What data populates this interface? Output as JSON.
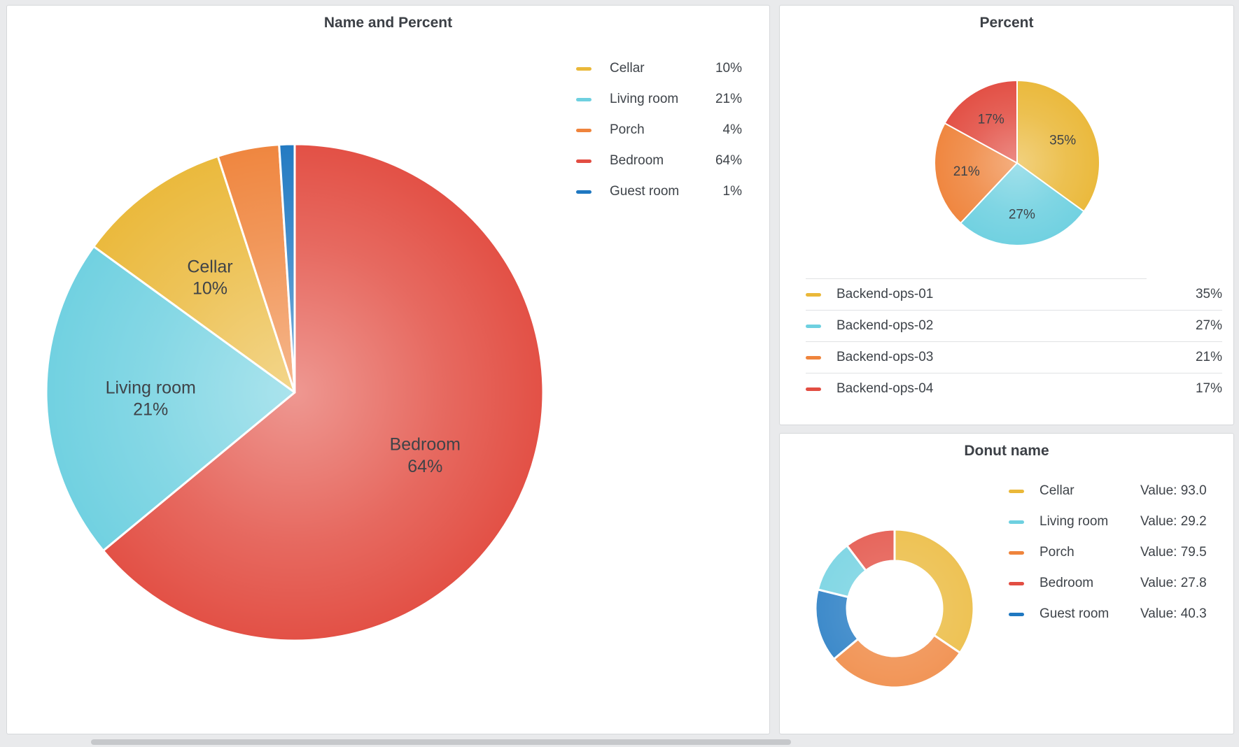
{
  "page": {
    "background": "#e9eaec",
    "panel_border": "#d6d8da"
  },
  "chart_data": [
    {
      "id": "name-and-percent",
      "type": "pie",
      "title": "Name and Percent",
      "legend_position": "right",
      "series": [
        {
          "name": "Cellar",
          "share": 10,
          "percent_label": "10%",
          "color": "#EAB839"
        },
        {
          "name": "Living room",
          "share": 21,
          "percent_label": "21%",
          "color": "#6ED0E0"
        },
        {
          "name": "Porch",
          "share": 4,
          "percent_label": "4%",
          "color": "#EF843C"
        },
        {
          "name": "Bedroom",
          "share": 64,
          "percent_label": "64%",
          "color": "#E24D42"
        },
        {
          "name": "Guest room",
          "share": 1,
          "percent_label": "1%",
          "color": "#1F78C1"
        }
      ],
      "draw_order": [
        3,
        1,
        0,
        2,
        4
      ],
      "slice_labels": [
        "Cellar 10%",
        "Living room 21%",
        "Bedroom 64%"
      ]
    },
    {
      "id": "percent",
      "type": "pie",
      "title": "Percent",
      "legend_position": "bottom-table",
      "series": [
        {
          "name": "Backend-ops-01",
          "share": 35,
          "percent_label": "35%",
          "color": "#EAB839"
        },
        {
          "name": "Backend-ops-02",
          "share": 27,
          "percent_label": "27%",
          "color": "#6ED0E0"
        },
        {
          "name": "Backend-ops-03",
          "share": 21,
          "percent_label": "21%",
          "color": "#EF843C"
        },
        {
          "name": "Backend-ops-04",
          "share": 17,
          "percent_label": "17%",
          "color": "#E24D42"
        }
      ],
      "draw_order": [
        0,
        1,
        2,
        3
      ],
      "slice_labels": [
        "35%",
        "27%",
        "21%",
        "17%"
      ]
    },
    {
      "id": "donut-name",
      "type": "donut",
      "title": "Donut name",
      "legend_position": "right",
      "series": [
        {
          "name": "Cellar",
          "value": 93.0,
          "value_label": "Value: 93.0",
          "color": "#EAB839"
        },
        {
          "name": "Living room",
          "value": 29.2,
          "value_label": "Value: 29.2",
          "color": "#6ED0E0"
        },
        {
          "name": "Porch",
          "value": 79.5,
          "value_label": "Value: 79.5",
          "color": "#EF843C"
        },
        {
          "name": "Bedroom",
          "value": 27.8,
          "value_label": "Value: 27.8",
          "color": "#E24D42"
        },
        {
          "name": "Guest room",
          "value": 40.3,
          "value_label": "Value: 40.3",
          "color": "#1F78C1"
        }
      ],
      "draw_order": [
        0,
        2,
        4,
        1,
        3
      ]
    }
  ]
}
